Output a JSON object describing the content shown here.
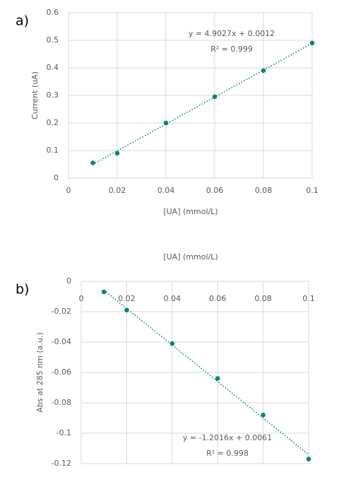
{
  "chart_data": [
    {
      "type": "scatter",
      "panel_label": "a)",
      "x_label": "[UA] (mmol/L)",
      "y_label": "Current (uA)",
      "x": [
        0.01,
        0.02,
        0.04,
        0.06,
        0.08,
        0.1
      ],
      "values": [
        0.055,
        0.09,
        0.2,
        0.295,
        0.39,
        0.49
      ],
      "color": "#00897b",
      "xlim": [
        0,
        0.1
      ],
      "ylim": [
        0,
        0.6
      ],
      "xticks": [
        0,
        0.02,
        0.04,
        0.06,
        0.08,
        0.1
      ],
      "yticks": [
        0,
        0.1,
        0.2,
        0.3,
        0.4,
        0.5,
        0.6
      ],
      "grid": true,
      "trendline": {
        "equation": "y = 4.9027x + 0.0012",
        "r_squared": "R² = 0.999"
      }
    },
    {
      "type": "scatter",
      "panel_label": "b)",
      "x_label": "[UA] (mmol/L)",
      "y_label": "Abs at 285 nm (a.u.)",
      "x": [
        0.01,
        0.02,
        0.04,
        0.06,
        0.08,
        0.1
      ],
      "values": [
        -0.007,
        -0.019,
        -0.041,
        -0.064,
        -0.088,
        -0.117
      ],
      "color": "#00897b",
      "xlim": [
        0,
        0.1
      ],
      "ylim": [
        -0.12,
        0
      ],
      "xticks": [
        0,
        0.02,
        0.04,
        0.06,
        0.08,
        0.1
      ],
      "yticks": [
        -0.12,
        -0.1,
        -0.08,
        -0.06,
        -0.04,
        -0.02,
        0
      ],
      "grid": true,
      "trendline": {
        "equation": "y = -1.2016x + 0.0061",
        "r_squared": "R² = 0.998"
      }
    }
  ]
}
